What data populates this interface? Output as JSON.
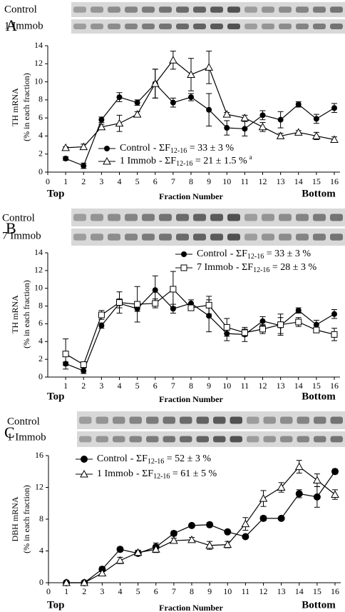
{
  "chart_data": [
    {
      "type": "line",
      "panel": "A",
      "gel_labels": [
        "Control",
        "1 Immob"
      ],
      "ylabel": [
        "TH mRNA",
        "(% in each fraction)"
      ],
      "xlabel": "Fraction Number",
      "x_end_labels": [
        "Top",
        "Bottom"
      ],
      "x": [
        1,
        2,
        3,
        4,
        5,
        6,
        7,
        8,
        9,
        10,
        11,
        12,
        13,
        14,
        15,
        16
      ],
      "xlim": [
        0,
        16
      ],
      "xticks": [
        0,
        1,
        2,
        3,
        4,
        5,
        6,
        7,
        8,
        9,
        10,
        11,
        12,
        13,
        14,
        15,
        16
      ],
      "ylim": [
        0,
        14
      ],
      "yticks": [
        0,
        2,
        4,
        6,
        8,
        10,
        12,
        14
      ],
      "series": [
        {
          "name": "Control",
          "marker": "circle-filled",
          "color": "#000000",
          "legend": [
            "-  ΣF",
            "12-16",
            " = 33 ± 3 %"
          ],
          "values": [
            1.5,
            0.7,
            5.8,
            8.3,
            7.7,
            9.8,
            7.7,
            8.3,
            6.9,
            4.9,
            4.8,
            6.3,
            5.8,
            7.5,
            5.9,
            7.1
          ],
          "errors": [
            0.2,
            0.3,
            0.3,
            0.5,
            0.3,
            1.6,
            0.5,
            0.4,
            1.8,
            0.8,
            0.8,
            0.5,
            0.9,
            0.3,
            0.5,
            0.5
          ]
        },
        {
          "name": "1 Immob",
          "marker": "triangle-open",
          "color": "#000000",
          "legend": [
            "- ΣF",
            "12-16",
            " = 21 ± 1.5 %"
          ],
          "legend_sup": "a",
          "values": [
            2.7,
            2.8,
            5.0,
            5.4,
            6.4,
            9.8,
            12.4,
            10.8,
            11.6,
            6.4,
            6.0,
            5.0,
            4.0,
            4.4,
            4.0,
            3.6
          ],
          "errors": [
            0.1,
            0.3,
            0.3,
            0.9,
            0.3,
            1.6,
            1.0,
            1.8,
            1.8,
            0.2,
            0.3,
            0.5,
            0.3,
            0.2,
            0.4,
            0.3
          ]
        }
      ]
    },
    {
      "type": "line",
      "panel": "B",
      "gel_labels": [
        "Control",
        "7 Immob"
      ],
      "ylabel": [
        "TH mRNA",
        "(% in each fraction)"
      ],
      "xlabel": "Fraction Number",
      "x_end_labels": [
        "Top",
        "Bottom"
      ],
      "x": [
        1,
        2,
        3,
        4,
        5,
        6,
        7,
        8,
        9,
        10,
        11,
        12,
        13,
        14,
        15,
        16
      ],
      "xlim": [
        0,
        16
      ],
      "xticks": [
        1,
        2,
        3,
        4,
        5,
        6,
        7,
        8,
        9,
        10,
        11,
        12,
        13,
        14,
        15,
        16
      ],
      "ylim": [
        0,
        14
      ],
      "yticks": [
        0,
        2,
        4,
        6,
        8,
        10,
        12,
        14
      ],
      "series": [
        {
          "name": "Control",
          "marker": "circle-filled",
          "color": "#000000",
          "legend": [
            "-   ΣF",
            "12-16",
            " = 33 ± 3 %"
          ],
          "values": [
            1.5,
            0.7,
            5.8,
            8.3,
            7.7,
            9.8,
            7.7,
            8.3,
            6.9,
            4.9,
            4.8,
            6.3,
            5.8,
            7.5,
            5.9,
            7.1
          ],
          "errors": [
            0.2,
            0.3,
            0.3,
            0.5,
            0.3,
            1.6,
            0.5,
            0.4,
            1.8,
            0.8,
            0.8,
            0.5,
            0.9,
            0.3,
            0.5,
            0.5
          ]
        },
        {
          "name": "7 Immob",
          "marker": "square-open",
          "color": "#000000",
          "legend": [
            "- ΣF",
            "12-16",
            " = 28 ± 3 %"
          ],
          "values": [
            2.6,
            1.4,
            7.0,
            8.4,
            8.2,
            8.3,
            9.9,
            7.8,
            8.1,
            5.6,
            5.0,
            5.4,
            5.9,
            6.2,
            5.3,
            4.8
          ],
          "errors": [
            1.7,
            0.3,
            0.5,
            1.2,
            2.0,
            0.5,
            2.0,
            0.3,
            1.0,
            1.0,
            0.4,
            0.5,
            1.2,
            0.5,
            0.3,
            0.7
          ]
        }
      ]
    },
    {
      "type": "line",
      "panel": "C",
      "gel_labels": [
        "Control",
        "1 Immob"
      ],
      "ylabel": [
        "DBH mRNA",
        "(% in each fraction)"
      ],
      "xlabel": "Fraction Number",
      "x_end_labels": [
        "Top",
        "Bottom"
      ],
      "x": [
        1,
        2,
        3,
        4,
        5,
        6,
        7,
        8,
        9,
        10,
        11,
        12,
        13,
        14,
        15,
        16
      ],
      "xlim": [
        0,
        16
      ],
      "xticks": [
        0,
        1,
        2,
        3,
        4,
        5,
        6,
        7,
        8,
        9,
        10,
        11,
        12,
        13,
        14,
        15,
        16
      ],
      "ylim": [
        0,
        16
      ],
      "yticks": [
        0,
        4,
        8,
        12,
        16
      ],
      "series": [
        {
          "name": "Control",
          "marker": "circle-filled-large",
          "color": "#000000",
          "legend": [
            "-   ΣF",
            "12-16",
            " = 52 ± 3 %"
          ],
          "values": [
            0,
            0,
            1.7,
            4.2,
            3.7,
            4.5,
            6.2,
            7.2,
            7.3,
            6.4,
            5.8,
            8.1,
            8.1,
            11.2,
            10.8,
            14.0
          ],
          "errors": [
            0.1,
            0.1,
            0.3,
            0.3,
            0.3,
            0.5,
            0.3,
            0.2,
            0.3,
            0.2,
            0.2,
            0.3,
            0.2,
            0.5,
            1.3,
            0.3
          ]
        },
        {
          "name": "1 Immob",
          "marker": "triangle-open",
          "color": "#000000",
          "legend": [
            "- ΣF",
            "12-16",
            " = 61 ± 5 %"
          ],
          "values": [
            0,
            0,
            1.2,
            2.8,
            3.8,
            4.2,
            5.3,
            5.4,
            4.7,
            4.8,
            7.4,
            10.6,
            12.0,
            14.6,
            12.9,
            11.1
          ],
          "errors": [
            0.1,
            0.1,
            0.3,
            0.4,
            0.3,
            0.4,
            0.3,
            0.3,
            0.5,
            0.4,
            0.8,
            1.0,
            0.6,
            0.8,
            0.8,
            0.6
          ]
        }
      ]
    }
  ]
}
